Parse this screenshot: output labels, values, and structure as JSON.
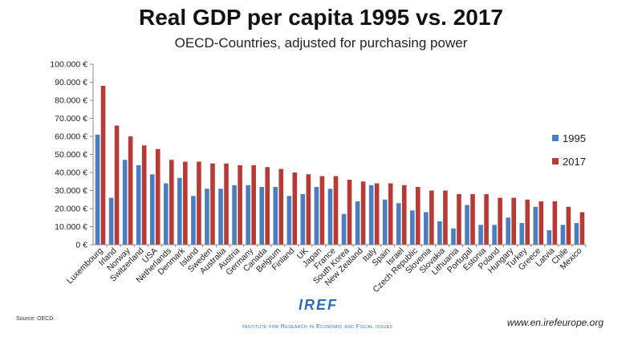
{
  "chart_data": {
    "type": "bar",
    "title": "Real GDP per capita 1995 vs. 2017",
    "subtitle": "OECD-Countries, adjusted for purchasing power",
    "xlabel": "",
    "ylabel": "",
    "ylim": [
      0,
      100000
    ],
    "yticks": [
      "0 €",
      "10.000 €",
      "20.000 €",
      "30.000 €",
      "40.000 €",
      "50.000 €",
      "60.000 €",
      "70.000 €",
      "80.000 €",
      "90.000 €",
      "100.000 €"
    ],
    "legend_position": "right",
    "grid": false,
    "categories": [
      "Luxembourg",
      "Irland",
      "Norway",
      "Switzerland",
      "USA",
      "Netherlands",
      "Denmark",
      "Island",
      "Sweden",
      "Australia",
      "Austria",
      "Germany",
      "Canada",
      "Belgium",
      "Finland",
      "UK",
      "Japan",
      "France",
      "South Korea",
      "New Zealand",
      "Italy",
      "Spain",
      "Israel",
      "Czech Republic",
      "Slovenia",
      "Slovakia",
      "Lithuania",
      "Portugal",
      "Estonia",
      "Poland",
      "Hungary",
      "Turkey",
      "Greece",
      "Latvia",
      "Chile",
      "Mexico"
    ],
    "series": [
      {
        "name": "1995",
        "color": "#4a7ebf",
        "values": [
          61000,
          26000,
          47000,
          44000,
          39000,
          34000,
          37000,
          27000,
          31000,
          31000,
          33000,
          33000,
          32000,
          32000,
          27000,
          28000,
          32000,
          31000,
          17000,
          24000,
          33000,
          25000,
          23000,
          19000,
          18000,
          13000,
          9000,
          22000,
          11000,
          11000,
          15000,
          12000,
          21000,
          8000,
          11000,
          12000
        ]
      },
      {
        "name": "2017",
        "color": "#b83a35",
        "values": [
          88000,
          66000,
          60000,
          55000,
          53000,
          47000,
          46000,
          46000,
          45000,
          45000,
          44000,
          44000,
          43000,
          42000,
          40000,
          39000,
          38000,
          38000,
          36000,
          35000,
          34000,
          34000,
          33000,
          32000,
          30000,
          30000,
          28000,
          28000,
          28000,
          26000,
          26000,
          25000,
          24000,
          24000,
          21000,
          18000
        ]
      }
    ]
  },
  "footer": {
    "source": "Source: OECD.",
    "logo_text": "IREF",
    "institute": "Institute for Research in Economic and Fiscal issues",
    "website": "www.en.irefeurope.org"
  }
}
